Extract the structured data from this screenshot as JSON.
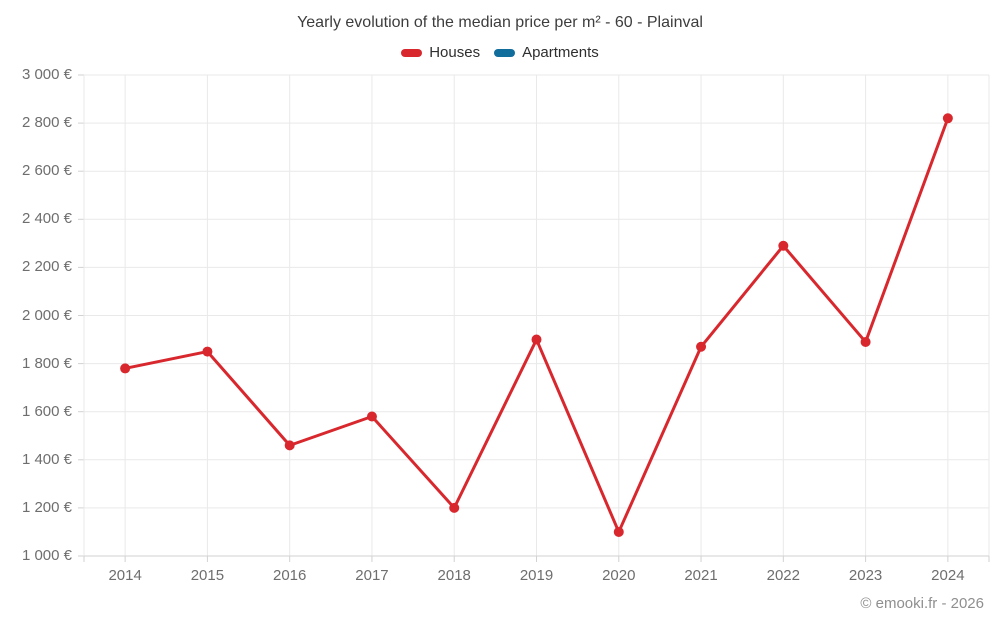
{
  "page": {
    "footer": "© emooki.fr - 2026"
  },
  "chart_data": {
    "type": "line",
    "title": "Yearly evolution of the median price per m² - 60 - Plainval",
    "categories": [
      "2014",
      "2015",
      "2016",
      "2017",
      "2018",
      "2019",
      "2020",
      "2021",
      "2022",
      "2023",
      "2024"
    ],
    "series": [
      {
        "name": "Houses",
        "color": "#d8282e",
        "values": [
          1780,
          1850,
          1460,
          1580,
          1200,
          1900,
          1100,
          1870,
          2290,
          1890,
          2820
        ]
      },
      {
        "name": "Apartments",
        "color": "#116d9c",
        "values": []
      }
    ],
    "ylim": [
      1000,
      3000
    ],
    "y_ticks": [
      {
        "value": 3000,
        "label": "3 000 €"
      },
      {
        "value": 2800,
        "label": "2 800 €"
      },
      {
        "value": 2600,
        "label": "2 600 €"
      },
      {
        "value": 2400,
        "label": "2 400 €"
      },
      {
        "value": 2200,
        "label": "2 200 €"
      },
      {
        "value": 2000,
        "label": "2 000 €"
      },
      {
        "value": 1800,
        "label": "1 800 €"
      },
      {
        "value": 1600,
        "label": "1 600 €"
      },
      {
        "value": 1400,
        "label": "1 400 €"
      },
      {
        "value": 1200,
        "label": "1 200 €"
      },
      {
        "value": 1000,
        "label": "1 000 €"
      }
    ],
    "grid": true,
    "legend_position": "top",
    "grid_color": "#e9e9e9",
    "axis_color": "#d2d2d2"
  }
}
